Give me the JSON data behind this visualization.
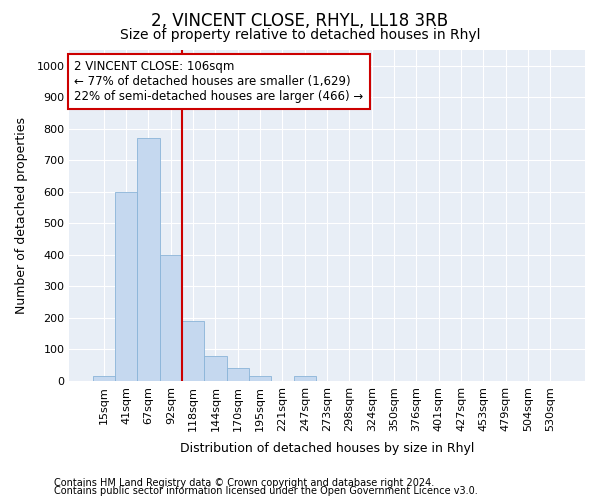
{
  "title": "2, VINCENT CLOSE, RHYL, LL18 3RB",
  "subtitle": "Size of property relative to detached houses in Rhyl",
  "xlabel": "Distribution of detached houses by size in Rhyl",
  "ylabel": "Number of detached properties",
  "footnote1": "Contains HM Land Registry data © Crown copyright and database right 2024.",
  "footnote2": "Contains public sector information licensed under the Open Government Licence v3.0.",
  "bin_labels": [
    "15sqm",
    "41sqm",
    "67sqm",
    "92sqm",
    "118sqm",
    "144sqm",
    "170sqm",
    "195sqm",
    "221sqm",
    "247sqm",
    "273sqm",
    "298sqm",
    "324sqm",
    "350sqm",
    "376sqm",
    "401sqm",
    "427sqm",
    "453sqm",
    "479sqm",
    "504sqm",
    "530sqm"
  ],
  "bar_values": [
    15,
    600,
    770,
    400,
    190,
    80,
    40,
    15,
    0,
    15,
    0,
    0,
    0,
    0,
    0,
    0,
    0,
    0,
    0,
    0,
    0
  ],
  "bar_color": "#c5d8ef",
  "bar_edge_color": "#8ab4d8",
  "vline_color": "#cc0000",
  "vline_pos": 3.5,
  "annotation_line1": "2 VINCENT CLOSE: 106sqm",
  "annotation_line2": "← 77% of detached houses are smaller (1,629)",
  "annotation_line3": "22% of semi-detached houses are larger (466) →",
  "annotation_box_facecolor": "#ffffff",
  "annotation_box_edgecolor": "#cc0000",
  "ylim": [
    0,
    1050
  ],
  "yticks": [
    0,
    100,
    200,
    300,
    400,
    500,
    600,
    700,
    800,
    900,
    1000
  ],
  "fig_bg_color": "#ffffff",
  "plot_bg_color": "#e8eef6",
  "grid_color": "#ffffff",
  "title_fontsize": 12,
  "subtitle_fontsize": 10,
  "axis_label_fontsize": 9,
  "tick_fontsize": 8,
  "footnote_fontsize": 7,
  "annotation_fontsize": 8.5
}
